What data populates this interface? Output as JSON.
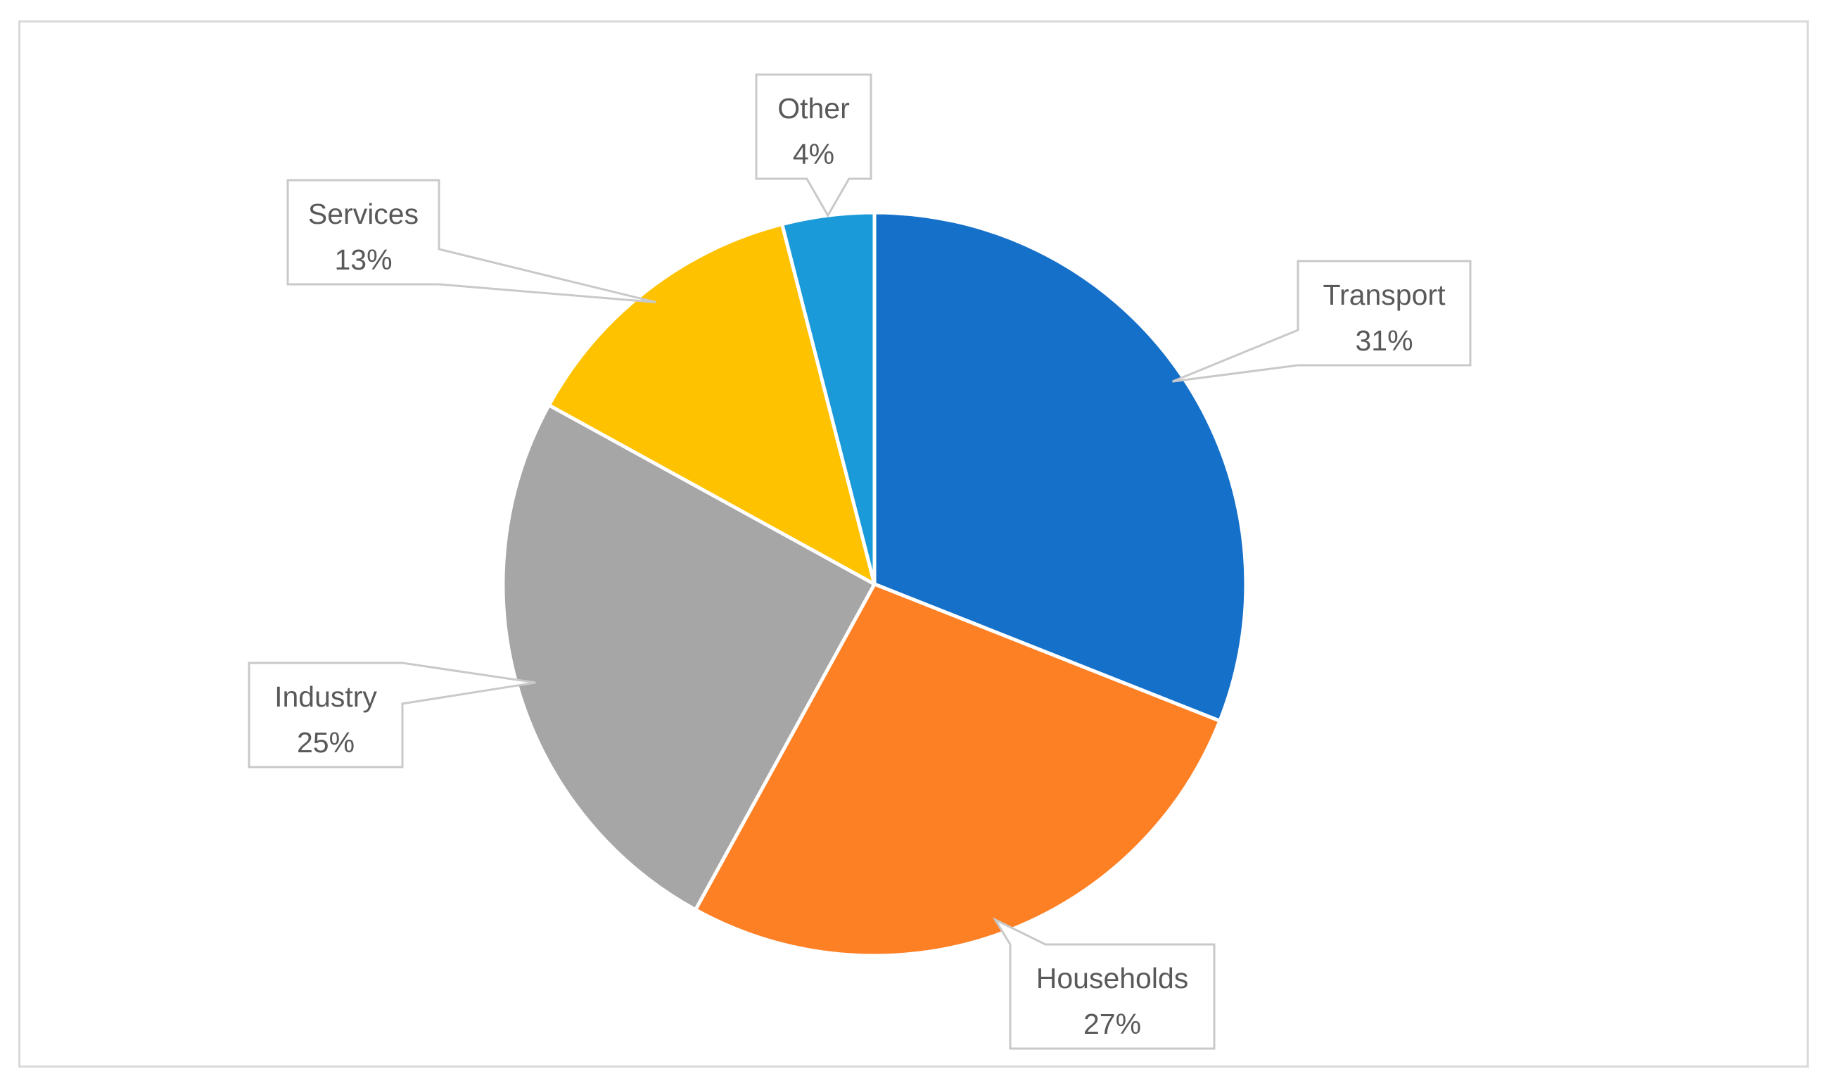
{
  "chart_data": {
    "type": "pie",
    "title": "",
    "categories": [
      "Transport",
      "Households",
      "Industry",
      "Services",
      "Other"
    ],
    "values": [
      31,
      27,
      25,
      13,
      4
    ],
    "value_labels": [
      "31%",
      "27%",
      "25%",
      "13%",
      "4%"
    ],
    "colors": [
      "#1570c9",
      "#fd8025",
      "#a6a6a6",
      "#fec200",
      "#1a9ad8"
    ],
    "start_angle_deg": 0,
    "direction": "clockwise",
    "legend": "none",
    "data_labels": "callouts"
  }
}
